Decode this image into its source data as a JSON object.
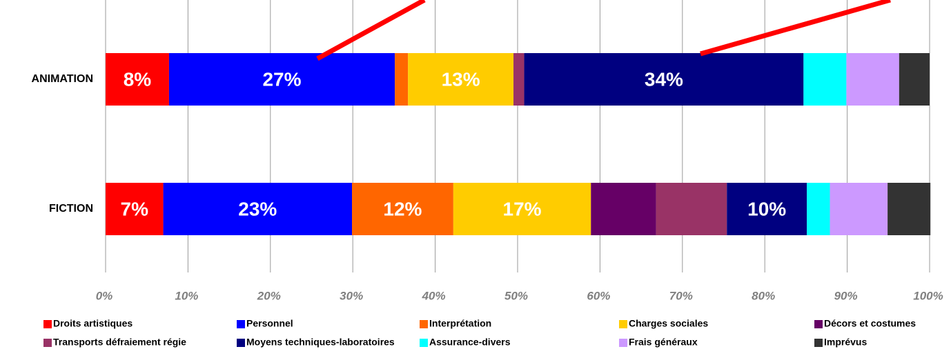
{
  "chart_data": {
    "type": "stacked_barh",
    "categories": [
      "ANIMATION",
      "FICTION"
    ],
    "series": [
      {
        "name": "Droits artistiques",
        "color": "#ff0000",
        "values": [
          7.7,
          7.0
        ],
        "value_labels": [
          "8%",
          "7%"
        ]
      },
      {
        "name": "Personnel",
        "color": "#0000ff",
        "values": [
          27.4,
          22.9
        ],
        "value_labels": [
          "27%",
          "23%"
        ]
      },
      {
        "name": "Interprétation",
        "color": "#ff6600",
        "values": [
          1.6,
          12.3
        ],
        "value_labels": [
          null,
          "12%"
        ]
      },
      {
        "name": "Charges sociales",
        "color": "#ffcc00",
        "values": [
          12.8,
          16.7
        ],
        "value_labels": [
          "13%",
          "17%"
        ]
      },
      {
        "name": "Décors et costumes",
        "color": "#660066",
        "values": [
          0,
          7.9
        ],
        "value_labels": [
          null,
          null
        ]
      },
      {
        "name": "Transports défraiement régie",
        "color": "#993366",
        "values": [
          1.3,
          8.6
        ],
        "value_labels": [
          null,
          null
        ]
      },
      {
        "name": "Moyens techniques-laboratoires",
        "color": "#000080",
        "values": [
          33.9,
          9.7
        ],
        "value_labels": [
          "34%",
          "10%"
        ]
      },
      {
        "name": "Assurance-divers",
        "color": "#00ffff",
        "values": [
          5.2,
          2.8
        ],
        "value_labels": [
          null,
          null
        ]
      },
      {
        "name": "Frais généraux",
        "color": "#cc99ff",
        "values": [
          6.4,
          7.0
        ],
        "value_labels": [
          null,
          null
        ]
      },
      {
        "name": "Imprévus",
        "color": "#333333",
        "values": [
          3.7,
          5.2
        ],
        "value_labels": [
          null,
          null
        ]
      }
    ],
    "xlim": [
      0,
      100
    ],
    "xticks": [
      {
        "value": 0,
        "label": "0%"
      },
      {
        "value": 10,
        "label": "10%"
      },
      {
        "value": 20,
        "label": "20%"
      },
      {
        "value": 30,
        "label": "30%"
      },
      {
        "value": 40,
        "label": "40%"
      },
      {
        "value": 50,
        "label": "50%"
      },
      {
        "value": 60,
        "label": "60%"
      },
      {
        "value": 70,
        "label": "70%"
      },
      {
        "value": 80,
        "label": "80%"
      },
      {
        "value": 90,
        "label": "90%"
      },
      {
        "value": 100,
        "label": "100%"
      }
    ],
    "grid": true,
    "legend": "bottom"
  }
}
